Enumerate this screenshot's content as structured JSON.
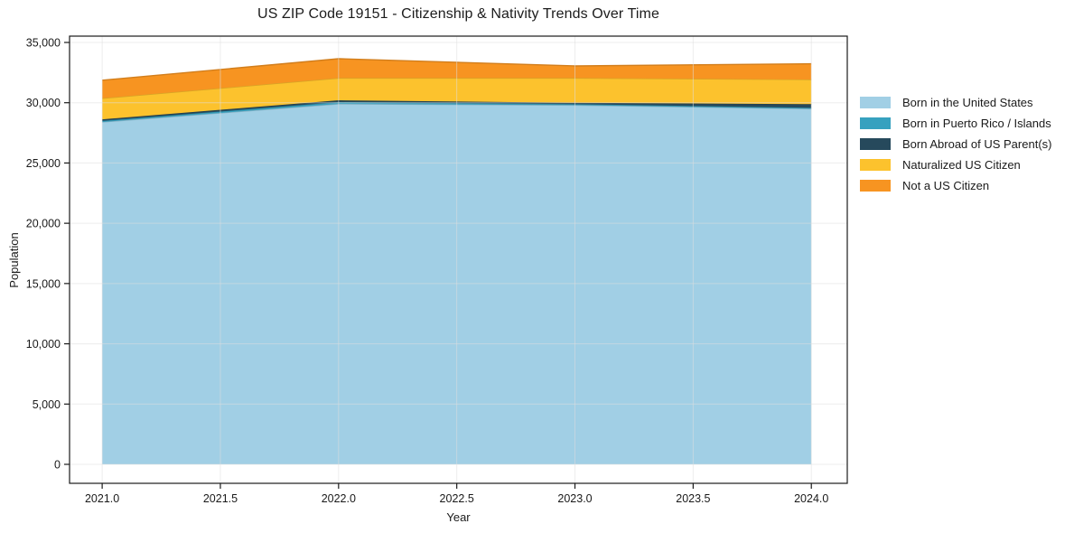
{
  "chart": {
    "title": "US ZIP Code 19151 - Citizenship & Nativity Trends Over Time"
  },
  "chart_data": {
    "type": "area",
    "stacked": true,
    "title": "US ZIP Code 19151 - Citizenship & Nativity Trends Over Time",
    "xlabel": "Year",
    "ylabel": "Population",
    "x": [
      2021,
      2022,
      2023,
      2024
    ],
    "series": [
      {
        "name": "Born in the United States",
        "color": "#a1cfe5",
        "values": [
          28400,
          29900,
          29800,
          29500
        ]
      },
      {
        "name": "Born in Puerto Rico / Islands",
        "color": "#36a1bf",
        "values": [
          100,
          150,
          80,
          80
        ]
      },
      {
        "name": "Born Abroad of US Parent(s)",
        "color": "#26495c",
        "values": [
          120,
          150,
          120,
          300
        ]
      },
      {
        "name": "Naturalized US Citizen",
        "color": "#fcc22d",
        "values": [
          1750,
          1850,
          2050,
          2050
        ]
      },
      {
        "name": "Not a US Citizen",
        "color": "#f79421",
        "values": [
          1500,
          1600,
          1000,
          1300
        ]
      }
    ],
    "stacked_totals": [
      31870,
      33650,
      33050,
      33230
    ],
    "x_ticks": [
      2021.0,
      2021.5,
      2022.0,
      2022.5,
      2023.0,
      2023.5,
      2024.0
    ],
    "x_tick_labels": [
      "2021.0",
      "2021.5",
      "2022.0",
      "2022.5",
      "2023.0",
      "2023.5",
      "2024.0"
    ],
    "y_ticks": [
      0,
      5000,
      10000,
      15000,
      20000,
      25000,
      30000,
      35000
    ],
    "y_tick_labels": [
      "0",
      "5,000",
      "10,000",
      "15,000",
      "20,000",
      "25,000",
      "30,000",
      "35,000"
    ],
    "xlim": [
      2020.862,
      2024.152
    ],
    "ylim": [
      -1574,
      35524
    ],
    "grid": true,
    "legend_position": "right-outside",
    "colors": {
      "spine": "#1a1a1a",
      "tick_text": "#1a1a1a",
      "grid": "rgba(222,222,222,0.55)",
      "background": "#ffffff"
    }
  }
}
